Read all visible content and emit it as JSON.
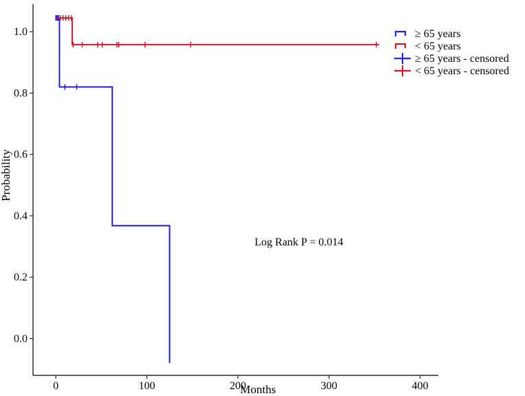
{
  "chart_data": {
    "type": "line",
    "subtype": "kaplan-meier survival curve",
    "title": "",
    "xlabel": "Months",
    "ylabel": "Probability",
    "xlim": [
      -25,
      420
    ],
    "ylim": [
      -0.12,
      1.09
    ],
    "xticks": [
      0,
      100,
      200,
      300,
      400
    ],
    "yticks": [
      0.0,
      0.2,
      0.4,
      0.6,
      0.8,
      1.0
    ],
    "xtick_labels": [
      "0",
      "100",
      "200",
      "300",
      "400"
    ],
    "ytick_labels": [
      "0.0",
      "0.2",
      "0.4",
      "0.6",
      "0.8",
      "1.0"
    ],
    "grid": false,
    "legend_position": "top-right",
    "annotation": "Log Rank P = 0.014",
    "series": [
      {
        "name": "≥ 65 years",
        "color": "#1f1fe6",
        "steps": [
          [
            0,
            1.045
          ],
          [
            4,
            1.045
          ],
          [
            4,
            0.82
          ],
          [
            62,
            0.82
          ],
          [
            62,
            0.368
          ],
          [
            125,
            0.368
          ],
          [
            125,
            -0.08
          ]
        ],
        "censored": [
          [
            0,
            1.045
          ],
          [
            1,
            1.045
          ],
          [
            2,
            1.045
          ],
          [
            3,
            1.045
          ],
          [
            10,
            0.82
          ],
          [
            23,
            0.82
          ]
        ]
      },
      {
        "name": "< 65 years",
        "color": "#d9142b",
        "steps": [
          [
            0,
            1.045
          ],
          [
            18,
            1.045
          ],
          [
            18,
            0.958
          ],
          [
            355,
            0.958
          ]
        ],
        "censored": [
          [
            5,
            1.045
          ],
          [
            8,
            1.045
          ],
          [
            11,
            1.045
          ],
          [
            14,
            1.045
          ],
          [
            17,
            1.045
          ],
          [
            19,
            0.958
          ],
          [
            29,
            0.958
          ],
          [
            46,
            0.958
          ],
          [
            51,
            0.958
          ],
          [
            67,
            0.958
          ],
          [
            69,
            0.958
          ],
          [
            98,
            0.958
          ],
          [
            148,
            0.958
          ],
          [
            352,
            0.958
          ]
        ]
      }
    ],
    "legend": [
      {
        "label": "≥ 65 years",
        "color": "#1f1fe6",
        "symbol": "step"
      },
      {
        "label": "< 65 years",
        "color": "#d9142b",
        "symbol": "step"
      },
      {
        "label": "≥ 65 years - censored",
        "color": "#1f1fe6",
        "symbol": "cross"
      },
      {
        "label": "< 65 years - censored",
        "color": "#d9142b",
        "symbol": "cross"
      }
    ]
  }
}
